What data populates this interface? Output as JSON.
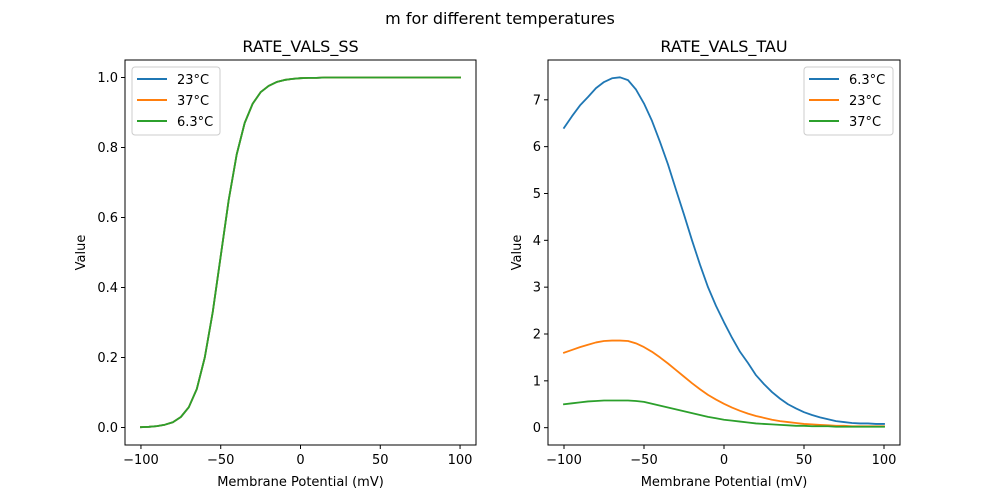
{
  "figure": {
    "suptitle": "m for different temperatures"
  },
  "chart_data": [
    {
      "type": "line",
      "title": "RATE_VALS_SS",
      "xlabel": "Membrane Potential (mV)",
      "ylabel": "Value",
      "xlim": [
        -110,
        110
      ],
      "ylim": [
        -0.05,
        1.05
      ],
      "xticks": [
        -100,
        -50,
        0,
        50,
        100
      ],
      "xtick_labels": [
        "−100",
        "−50",
        "0",
        "50",
        "100"
      ],
      "yticks": [
        0.0,
        0.2,
        0.4,
        0.6,
        0.8,
        1.0
      ],
      "ytick_labels": [
        "0.0",
        "0.2",
        "0.4",
        "0.6",
        "0.8",
        "1.0"
      ],
      "grid": false,
      "legend_position": "top-left",
      "x": [
        -100,
        -95,
        -90,
        -85,
        -80,
        -75,
        -70,
        -65,
        -60,
        -55,
        -50,
        -45,
        -40,
        -35,
        -30,
        -25,
        -20,
        -15,
        -10,
        -5,
        0,
        5,
        10,
        15,
        20,
        25,
        30,
        35,
        40,
        45,
        50,
        55,
        60,
        65,
        70,
        75,
        80,
        85,
        90,
        95,
        100
      ],
      "series": [
        {
          "name": "23°C",
          "color": "#1f77b4",
          "values": [
            0.001,
            0.002,
            0.004,
            0.008,
            0.015,
            0.03,
            0.058,
            0.11,
            0.2,
            0.33,
            0.49,
            0.65,
            0.78,
            0.87,
            0.925,
            0.958,
            0.976,
            0.987,
            0.993,
            0.996,
            0.998,
            0.999,
            0.999,
            1.0,
            1.0,
            1.0,
            1.0,
            1.0,
            1.0,
            1.0,
            1.0,
            1.0,
            1.0,
            1.0,
            1.0,
            1.0,
            1.0,
            1.0,
            1.0,
            1.0,
            1.0
          ]
        },
        {
          "name": "37°C",
          "color": "#ff7f0e",
          "values": [
            0.001,
            0.002,
            0.004,
            0.008,
            0.015,
            0.03,
            0.058,
            0.11,
            0.2,
            0.33,
            0.49,
            0.65,
            0.78,
            0.87,
            0.925,
            0.958,
            0.976,
            0.987,
            0.993,
            0.996,
            0.998,
            0.999,
            0.999,
            1.0,
            1.0,
            1.0,
            1.0,
            1.0,
            1.0,
            1.0,
            1.0,
            1.0,
            1.0,
            1.0,
            1.0,
            1.0,
            1.0,
            1.0,
            1.0,
            1.0,
            1.0
          ]
        },
        {
          "name": "6.3°C",
          "color": "#2ca02c",
          "values": [
            0.001,
            0.002,
            0.004,
            0.008,
            0.015,
            0.03,
            0.058,
            0.11,
            0.2,
            0.33,
            0.49,
            0.65,
            0.78,
            0.87,
            0.925,
            0.958,
            0.976,
            0.987,
            0.993,
            0.996,
            0.998,
            0.999,
            0.999,
            1.0,
            1.0,
            1.0,
            1.0,
            1.0,
            1.0,
            1.0,
            1.0,
            1.0,
            1.0,
            1.0,
            1.0,
            1.0,
            1.0,
            1.0,
            1.0,
            1.0,
            1.0
          ]
        }
      ]
    },
    {
      "type": "line",
      "title": "RATE_VALS_TAU",
      "xlabel": "Membrane Potential (mV)",
      "ylabel": "Value",
      "xlim": [
        -110,
        110
      ],
      "ylim": [
        -0.37,
        7.85
      ],
      "xticks": [
        -100,
        -50,
        0,
        50,
        100
      ],
      "xtick_labels": [
        "−100",
        "−50",
        "0",
        "50",
        "100"
      ],
      "yticks": [
        0,
        1,
        2,
        3,
        4,
        5,
        6,
        7
      ],
      "ytick_labels": [
        "0",
        "1",
        "2",
        "3",
        "4",
        "5",
        "6",
        "7"
      ],
      "grid": false,
      "legend_position": "top-right",
      "x": [
        -100,
        -95,
        -90,
        -85,
        -80,
        -75,
        -70,
        -65,
        -60,
        -55,
        -50,
        -45,
        -40,
        -35,
        -30,
        -25,
        -20,
        -15,
        -10,
        -5,
        0,
        5,
        10,
        15,
        20,
        25,
        30,
        35,
        40,
        45,
        50,
        55,
        60,
        65,
        70,
        75,
        80,
        85,
        90,
        95,
        100
      ],
      "series": [
        {
          "name": "6.3°C",
          "color": "#1f77b4",
          "values": [
            6.4,
            6.65,
            6.88,
            7.06,
            7.25,
            7.38,
            7.46,
            7.48,
            7.42,
            7.22,
            6.92,
            6.55,
            6.1,
            5.62,
            5.08,
            4.55,
            4.0,
            3.48,
            3.0,
            2.6,
            2.25,
            1.92,
            1.62,
            1.38,
            1.12,
            0.93,
            0.76,
            0.62,
            0.5,
            0.41,
            0.33,
            0.27,
            0.22,
            0.18,
            0.14,
            0.12,
            0.1,
            0.09,
            0.09,
            0.08,
            0.08
          ]
        },
        {
          "name": "23°C",
          "color": "#ff7f0e",
          "values": [
            1.6,
            1.66,
            1.72,
            1.77,
            1.82,
            1.85,
            1.86,
            1.86,
            1.85,
            1.8,
            1.72,
            1.62,
            1.5,
            1.37,
            1.23,
            1.09,
            0.95,
            0.82,
            0.7,
            0.6,
            0.51,
            0.43,
            0.36,
            0.3,
            0.25,
            0.21,
            0.17,
            0.14,
            0.12,
            0.1,
            0.08,
            0.07,
            0.06,
            0.05,
            0.04,
            0.04,
            0.03,
            0.03,
            0.03,
            0.03,
            0.03
          ]
        },
        {
          "name": "37°C",
          "color": "#2ca02c",
          "values": [
            0.5,
            0.52,
            0.54,
            0.56,
            0.57,
            0.58,
            0.58,
            0.58,
            0.58,
            0.57,
            0.55,
            0.51,
            0.47,
            0.43,
            0.39,
            0.35,
            0.31,
            0.27,
            0.23,
            0.2,
            0.17,
            0.15,
            0.13,
            0.11,
            0.09,
            0.08,
            0.07,
            0.06,
            0.05,
            0.04,
            0.04,
            0.03,
            0.03,
            0.03,
            0.02,
            0.02,
            0.02,
            0.02,
            0.02,
            0.02,
            0.02
          ]
        }
      ]
    }
  ]
}
